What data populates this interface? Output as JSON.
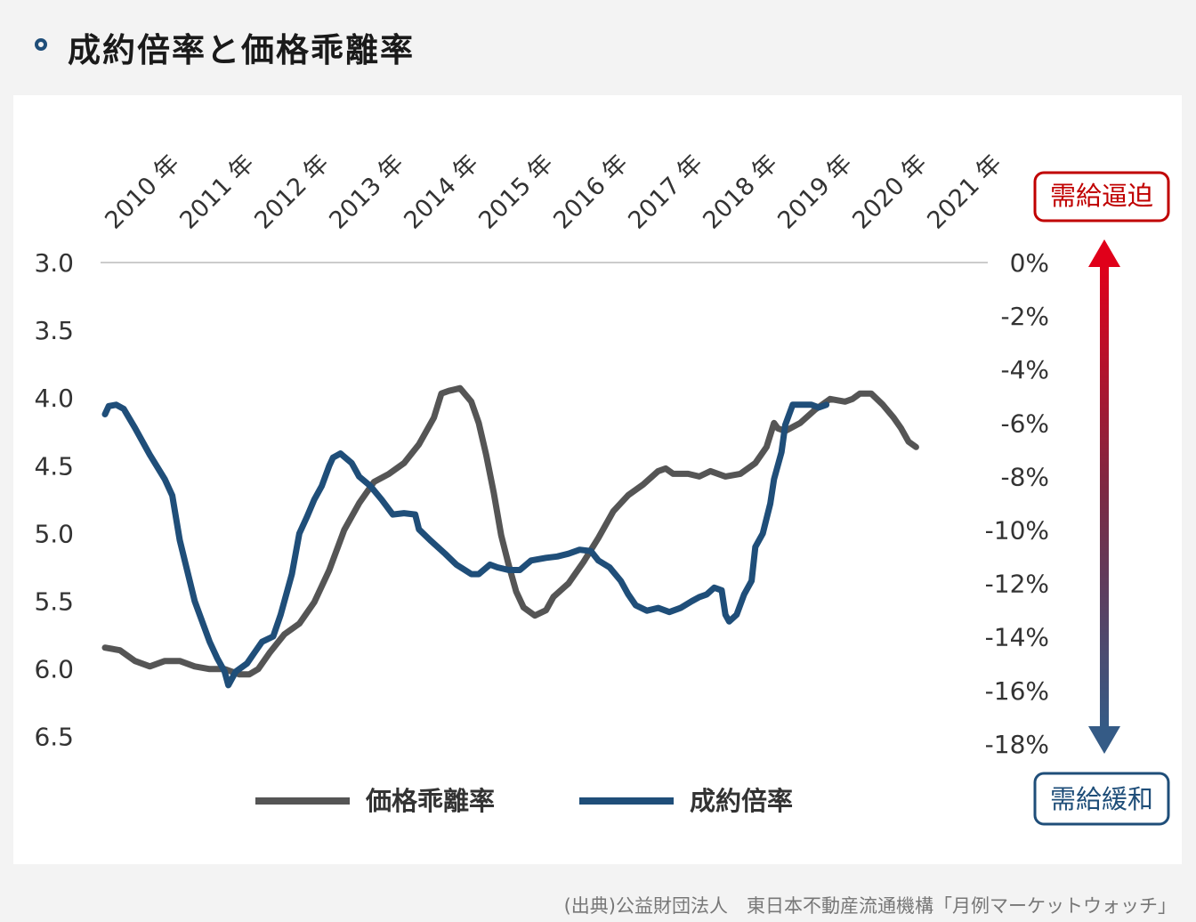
{
  "header": {
    "title": "成約倍率と価格乖離率"
  },
  "source": "(出典)公益財団法人　東日本不動産流通機構「月例マーケットウォッチ」",
  "annotations": {
    "top_label": "需給逼迫",
    "bottom_label": "需給緩和",
    "top_color": "#c00000",
    "bottom_color": "#1f4e79"
  },
  "chart_data": {
    "type": "line",
    "x_tick_labels": [
      "2010 年",
      "2011 年",
      "2012 年",
      "2013 年",
      "2014 年",
      "2015 年",
      "2016 年",
      "2017 年",
      "2018 年",
      "2019 年",
      "2020 年",
      "2021 年"
    ],
    "x_range": [
      2010.0,
      2022.0
    ],
    "left_axis": {
      "ticks": [
        "3.0",
        "3.5",
        "4.0",
        "4.5",
        "5.0",
        "5.5",
        "6.0",
        "6.5"
      ],
      "range": [
        3.0,
        6.5
      ],
      "inverted": true
    },
    "right_axis": {
      "ticks": [
        "0%",
        "-2%",
        "-4%",
        "-6%",
        "-8%",
        "-10%",
        "-12%",
        "-14%",
        "-16%",
        "-18%"
      ],
      "range": [
        0,
        -18
      ]
    },
    "grid": "top line only",
    "legend_position": "bottom",
    "series": [
      {
        "name": "価格乖離率",
        "axis": "right",
        "color": "#555555",
        "points": [
          [
            2010.0,
            -14.4
          ],
          [
            2010.2,
            -14.5
          ],
          [
            2010.4,
            -14.9
          ],
          [
            2010.6,
            -15.1
          ],
          [
            2010.8,
            -14.9
          ],
          [
            2011.0,
            -14.9
          ],
          [
            2011.2,
            -15.1
          ],
          [
            2011.4,
            -15.2
          ],
          [
            2011.6,
            -15.2
          ],
          [
            2011.8,
            -15.4
          ],
          [
            2011.93,
            -15.4
          ],
          [
            2012.05,
            -15.2
          ],
          [
            2012.2,
            -14.6
          ],
          [
            2012.4,
            -13.9
          ],
          [
            2012.6,
            -13.5
          ],
          [
            2012.8,
            -12.7
          ],
          [
            2013.0,
            -11.5
          ],
          [
            2013.2,
            -10.0
          ],
          [
            2013.4,
            -9.0
          ],
          [
            2013.6,
            -8.2
          ],
          [
            2013.8,
            -7.9
          ],
          [
            2014.0,
            -7.5
          ],
          [
            2014.2,
            -6.8
          ],
          [
            2014.4,
            -5.8
          ],
          [
            2014.5,
            -4.9
          ],
          [
            2014.6,
            -4.8
          ],
          [
            2014.75,
            -4.7
          ],
          [
            2014.9,
            -5.2
          ],
          [
            2015.0,
            -6.0
          ],
          [
            2015.1,
            -7.2
          ],
          [
            2015.2,
            -8.6
          ],
          [
            2015.3,
            -10.2
          ],
          [
            2015.4,
            -11.3
          ],
          [
            2015.5,
            -12.3
          ],
          [
            2015.6,
            -12.9
          ],
          [
            2015.75,
            -13.2
          ],
          [
            2015.9,
            -13.0
          ],
          [
            2016.0,
            -12.5
          ],
          [
            2016.2,
            -12.0
          ],
          [
            2016.4,
            -11.2
          ],
          [
            2016.6,
            -10.3
          ],
          [
            2016.8,
            -9.3
          ],
          [
            2017.0,
            -8.7
          ],
          [
            2017.2,
            -8.3
          ],
          [
            2017.4,
            -7.8
          ],
          [
            2017.5,
            -7.7
          ],
          [
            2017.6,
            -7.9
          ],
          [
            2017.8,
            -7.9
          ],
          [
            2017.95,
            -8.0
          ],
          [
            2018.1,
            -7.8
          ],
          [
            2018.3,
            -8.0
          ],
          [
            2018.5,
            -7.9
          ],
          [
            2018.7,
            -7.5
          ],
          [
            2018.85,
            -6.9
          ],
          [
            2018.95,
            -6.0
          ],
          [
            2019.0,
            -6.2
          ],
          [
            2019.1,
            -6.3
          ],
          [
            2019.3,
            -6.0
          ],
          [
            2019.5,
            -5.5
          ],
          [
            2019.7,
            -5.1
          ],
          [
            2019.9,
            -5.2
          ],
          [
            2020.0,
            -5.1
          ],
          [
            2020.1,
            -4.9
          ],
          [
            2020.25,
            -4.9
          ],
          [
            2020.4,
            -5.3
          ],
          [
            2020.55,
            -5.8
          ],
          [
            2020.65,
            -6.2
          ],
          [
            2020.75,
            -6.7
          ],
          [
            2020.85,
            -6.9
          ]
        ]
      },
      {
        "name": "成約倍率",
        "axis": "left",
        "color": "#1f4e79",
        "points": [
          [
            2010.0,
            4.12
          ],
          [
            2010.05,
            4.06
          ],
          [
            2010.15,
            4.05
          ],
          [
            2010.25,
            4.08
          ],
          [
            2010.4,
            4.22
          ],
          [
            2010.6,
            4.42
          ],
          [
            2010.8,
            4.6
          ],
          [
            2010.9,
            4.72
          ],
          [
            2011.0,
            5.05
          ],
          [
            2011.2,
            5.5
          ],
          [
            2011.4,
            5.8
          ],
          [
            2011.5,
            5.92
          ],
          [
            2011.6,
            6.02
          ],
          [
            2011.65,
            6.12
          ],
          [
            2011.75,
            6.02
          ],
          [
            2011.9,
            5.96
          ],
          [
            2012.0,
            5.88
          ],
          [
            2012.1,
            5.8
          ],
          [
            2012.25,
            5.76
          ],
          [
            2012.35,
            5.6
          ],
          [
            2012.5,
            5.3
          ],
          [
            2012.6,
            5.0
          ],
          [
            2012.7,
            4.88
          ],
          [
            2012.8,
            4.75
          ],
          [
            2012.9,
            4.65
          ],
          [
            2013.0,
            4.5
          ],
          [
            2013.05,
            4.44
          ],
          [
            2013.15,
            4.41
          ],
          [
            2013.3,
            4.48
          ],
          [
            2013.4,
            4.58
          ],
          [
            2013.55,
            4.65
          ],
          [
            2013.7,
            4.75
          ],
          [
            2013.85,
            4.86
          ],
          [
            2014.0,
            4.85
          ],
          [
            2014.15,
            4.86
          ],
          [
            2014.2,
            4.97
          ],
          [
            2014.35,
            5.05
          ],
          [
            2014.55,
            5.15
          ],
          [
            2014.7,
            5.23
          ],
          [
            2014.9,
            5.3
          ],
          [
            2015.0,
            5.3
          ],
          [
            2015.15,
            5.23
          ],
          [
            2015.25,
            5.25
          ],
          [
            2015.4,
            5.27
          ],
          [
            2015.55,
            5.27
          ],
          [
            2015.7,
            5.2
          ],
          [
            2015.9,
            5.18
          ],
          [
            2016.05,
            5.17
          ],
          [
            2016.2,
            5.15
          ],
          [
            2016.35,
            5.12
          ],
          [
            2016.5,
            5.13
          ],
          [
            2016.6,
            5.2
          ],
          [
            2016.75,
            5.25
          ],
          [
            2016.9,
            5.35
          ],
          [
            2017.0,
            5.45
          ],
          [
            2017.1,
            5.53
          ],
          [
            2017.25,
            5.57
          ],
          [
            2017.4,
            5.55
          ],
          [
            2017.55,
            5.58
          ],
          [
            2017.7,
            5.55
          ],
          [
            2017.85,
            5.5
          ],
          [
            2017.95,
            5.47
          ],
          [
            2018.05,
            5.45
          ],
          [
            2018.15,
            5.4
          ],
          [
            2018.25,
            5.42
          ],
          [
            2018.3,
            5.6
          ],
          [
            2018.35,
            5.65
          ],
          [
            2018.45,
            5.6
          ],
          [
            2018.55,
            5.45
          ],
          [
            2018.65,
            5.35
          ],
          [
            2018.7,
            5.1
          ],
          [
            2018.8,
            5.0
          ],
          [
            2018.9,
            4.78
          ],
          [
            2018.95,
            4.6
          ],
          [
            2019.05,
            4.4
          ],
          [
            2019.1,
            4.2
          ],
          [
            2019.2,
            4.05
          ],
          [
            2019.3,
            4.05
          ],
          [
            2019.45,
            4.05
          ],
          [
            2019.55,
            4.07
          ],
          [
            2019.65,
            4.05
          ]
        ]
      }
    ]
  }
}
